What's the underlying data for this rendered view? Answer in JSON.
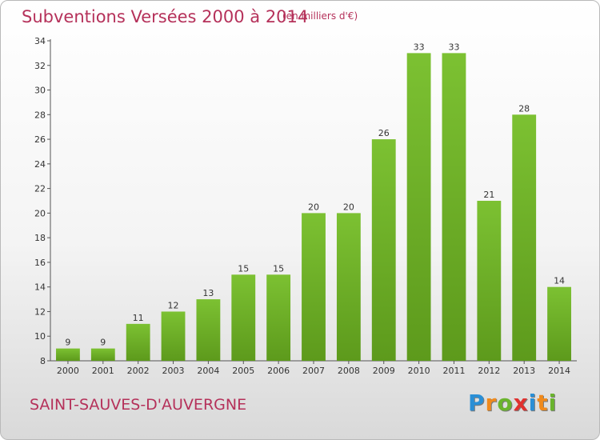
{
  "header": {
    "title": "Subventions Versées 2000 à 2014",
    "subtitle": "(en milliers d'€)"
  },
  "footer": {
    "commune": "SAINT-SAUVES-D'AUVERGNE",
    "logo_letters": [
      "P",
      "r",
      "o",
      "x",
      "i",
      "t",
      "i"
    ],
    "logo_colors": [
      "#2a8fd6",
      "#f08a1c",
      "#6ab42d",
      "#e0312f",
      "#2a8fd6",
      "#f08a1c",
      "#6ab42d"
    ]
  },
  "chart_data": {
    "type": "bar",
    "categories": [
      "2000",
      "2001",
      "2002",
      "2003",
      "2004",
      "2005",
      "2006",
      "2007",
      "2008",
      "2009",
      "2010",
      "2011",
      "2012",
      "2013",
      "2014"
    ],
    "values": [
      9,
      9,
      11,
      12,
      13,
      15,
      15,
      20,
      20,
      26,
      33,
      33,
      21,
      28,
      14
    ],
    "ylim": [
      8,
      34
    ],
    "yticks": [
      8,
      10,
      12,
      14,
      16,
      18,
      20,
      22,
      24,
      26,
      28,
      30,
      32,
      34
    ],
    "bar_color": "#7cc132",
    "bar_color_dark": "#5d9a1c",
    "grid": false
  }
}
